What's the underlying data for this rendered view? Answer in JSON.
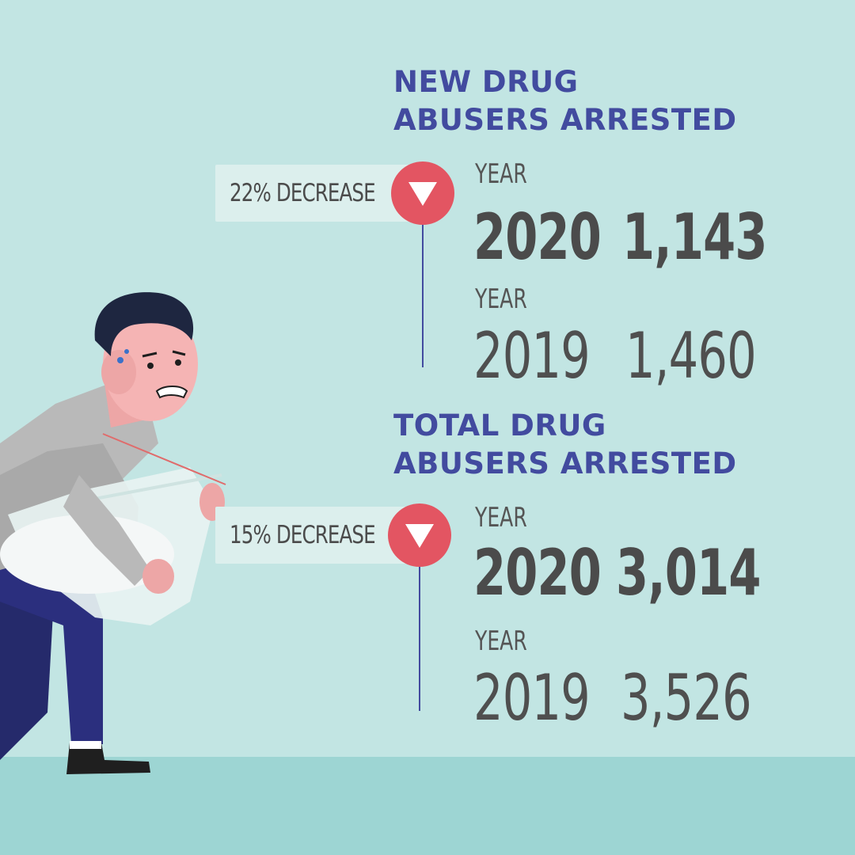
{
  "sections": [
    {
      "title_line1": "NEW DRUG",
      "title_line2": "ABUSERS ARRESTED",
      "change_label": "22% DECREASE",
      "rows": [
        {
          "year_label": "YEAR",
          "year": "2020",
          "value": "1,143"
        },
        {
          "year_label": "YEAR",
          "year": "2019",
          "value": "1,460"
        }
      ]
    },
    {
      "title_line1": "TOTAL DRUG",
      "title_line2": "ABUSERS ARRESTED",
      "change_label": "15% DECREASE",
      "rows": [
        {
          "year_label": "YEAR",
          "year": "2020",
          "value": "3,014"
        },
        {
          "year_label": "YEAR",
          "year": "2019",
          "value": "3,526"
        }
      ]
    }
  ],
  "colors": {
    "background": "#c2e5e3",
    "floor": "#9dd5d3",
    "title": "#424b9f",
    "marker": "#e35562",
    "text": "#4b4b4b"
  },
  "icons": {
    "decrease_marker": "down-triangle-icon"
  }
}
